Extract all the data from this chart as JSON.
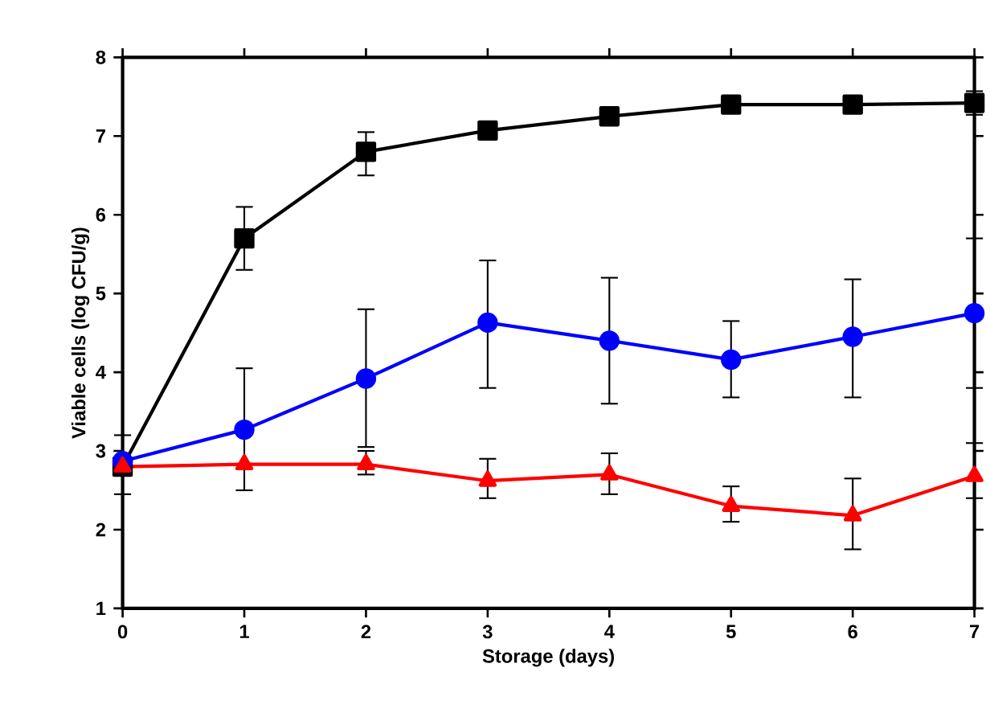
{
  "chart_data": {
    "type": "line",
    "xlabel": "Storage (days)",
    "ylabel": "Viable cells (log CFU/g)",
    "x": [
      0,
      1,
      2,
      3,
      4,
      5,
      6,
      7
    ],
    "xlim": [
      0,
      7
    ],
    "xticks": [
      0,
      1,
      2,
      3,
      4,
      5,
      6,
      7
    ],
    "ylim": [
      1,
      8
    ],
    "yticks": [
      1,
      2,
      3,
      4,
      5,
      6,
      7,
      8
    ],
    "grid": false,
    "line_style": "solid",
    "series": [
      {
        "color": "#000000",
        "marker": "square",
        "values": [
          2.8,
          5.7,
          6.8,
          7.07,
          7.25,
          7.4,
          7.4,
          7.42
        ],
        "errors": [
          [
            2.45,
            3.2
          ],
          [
            5.3,
            6.1
          ],
          [
            6.5,
            7.05
          ],
          [
            6.98,
            7.15
          ],
          null,
          [
            7.32,
            7.47
          ],
          [
            7.3,
            7.5
          ],
          [
            7.27,
            7.57
          ]
        ]
      },
      {
        "color": "#0000ff",
        "marker": "circle",
        "values": [
          2.87,
          3.27,
          3.92,
          4.63,
          4.4,
          4.16,
          4.45,
          4.75
        ],
        "errors": [
          null,
          [
            2.5,
            4.05
          ],
          [
            3.05,
            4.8
          ],
          [
            3.8,
            5.42
          ],
          [
            3.6,
            5.2
          ],
          [
            3.68,
            4.65
          ],
          [
            3.68,
            5.18
          ],
          [
            3.8,
            5.7
          ]
        ]
      },
      {
        "color": "#ff0000",
        "marker": "triangle",
        "values": [
          2.8,
          2.83,
          2.83,
          2.62,
          2.7,
          2.3,
          2.18,
          2.68
        ],
        "errors": [
          null,
          null,
          [
            2.7,
            3.0
          ],
          [
            2.4,
            2.9
          ],
          [
            2.45,
            2.97
          ],
          [
            2.1,
            2.55
          ],
          [
            1.75,
            2.65
          ],
          [
            2.4,
            3.1
          ]
        ]
      }
    ]
  }
}
